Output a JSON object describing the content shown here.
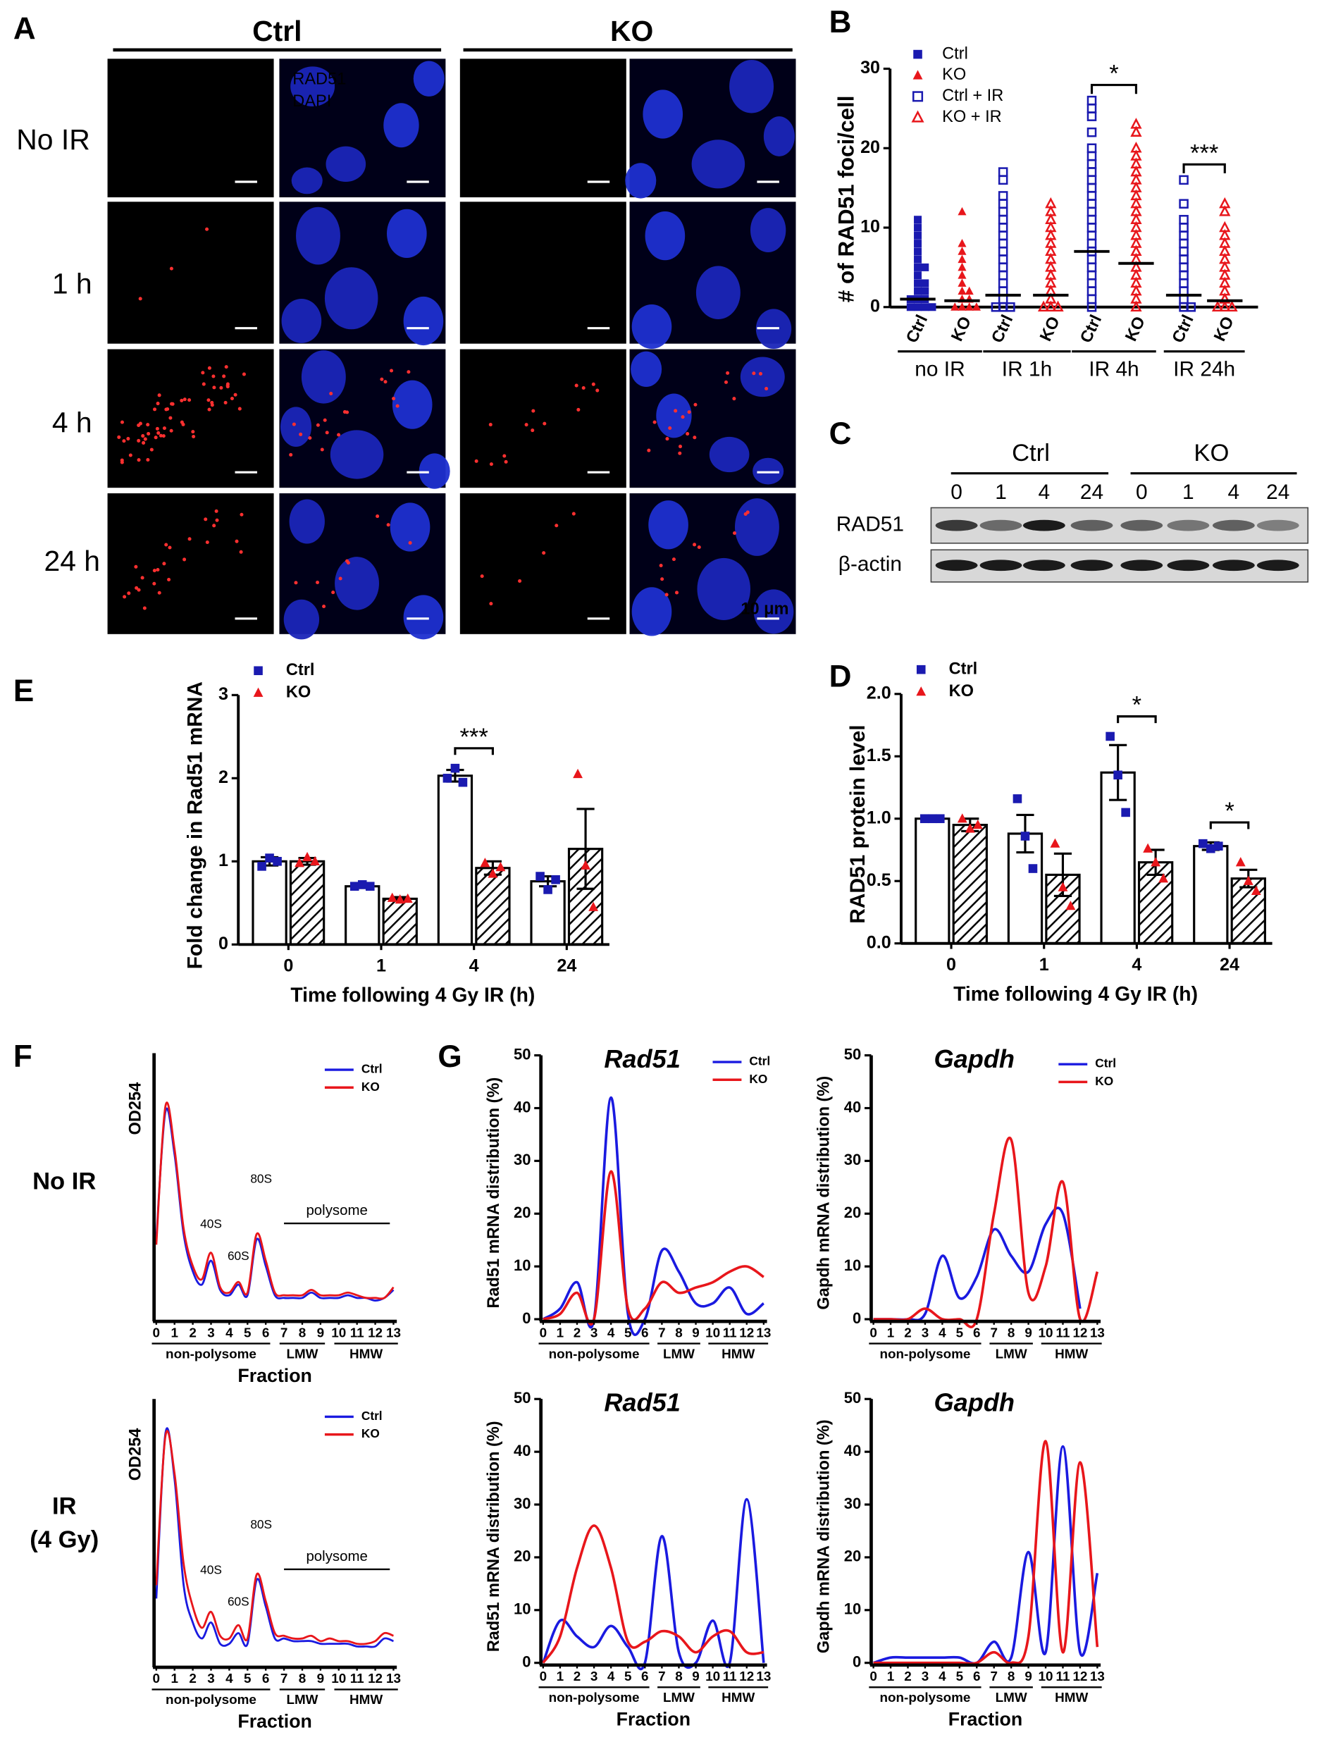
{
  "panel_labels": [
    "A",
    "B",
    "C",
    "D",
    "E",
    "F",
    "G"
  ],
  "panel_a": {
    "groups": [
      "Ctrl",
      "KO"
    ],
    "rows": [
      "No IR",
      "1 h",
      "4 h",
      "24 h"
    ],
    "channel_labels": [
      "RAD51",
      "RAD51",
      "DAPI"
    ],
    "scale_bar": "10 μm"
  },
  "panel_c": {
    "groups": [
      "Ctrl",
      "KO"
    ],
    "lanes": [
      "0",
      "1",
      "4",
      "24",
      "0",
      "1",
      "4",
      "24"
    ],
    "rows": [
      "RAD51",
      "β-actin"
    ]
  },
  "chart_data": [
    {
      "type": "dot_plot",
      "ylabel": "# of RAD51 foci/cell",
      "categories": [
        "Ctrl",
        "KO",
        "Ctrl",
        "KO",
        "Ctrl",
        "KO",
        "Ctrl",
        "KO"
      ],
      "groups": [
        "no IR",
        "IR 1h",
        "IR 4h",
        "IR 24h"
      ],
      "significance": [
        null,
        null,
        "*",
        "***"
      ],
      "ylim": [
        0,
        30
      ],
      "yticks": [
        0,
        10,
        20,
        30
      ],
      "series": [
        {
          "name": "Ctrl",
          "color": "#1a1ab0",
          "marker": "square",
          "filled": true,
          "means": [
            1,
            null,
            null,
            null,
            null,
            null,
            null,
            null
          ],
          "points": [
            [
              0,
              0,
              0,
              0,
              1,
              1,
              1,
              2,
              2,
              3,
              3,
              4,
              5,
              5,
              6,
              7,
              8,
              9,
              10,
              11
            ],
            null,
            null,
            null,
            null,
            null,
            null,
            null
          ]
        },
        {
          "name": "KO",
          "color": "#e8161b",
          "marker": "triangle",
          "filled": true,
          "means": [
            null,
            0.8,
            null,
            null,
            null,
            null,
            null,
            null
          ],
          "points": [
            null,
            [
              0,
              0,
              0,
              0,
              1,
              1,
              2,
              2,
              3,
              4,
              5,
              6,
              7,
              8,
              12
            ],
            null,
            null,
            null,
            null,
            null,
            null
          ]
        },
        {
          "name": "Ctrl + IR",
          "color": "#1a1ab0",
          "marker": "square",
          "filled": false,
          "means": [
            null,
            null,
            1.5,
            null,
            7,
            null,
            1.5,
            null
          ],
          "points": [
            null,
            null,
            [
              0,
              0,
              0,
              1,
              2,
              3,
              4,
              5,
              6,
              7,
              8,
              9,
              10,
              11,
              12,
              13,
              14,
              16,
              17
            ],
            null,
            [
              0,
              1,
              2,
              3,
              4,
              5,
              6,
              7,
              8,
              9,
              10,
              11,
              12,
              13,
              14,
              15,
              16,
              17,
              18,
              19,
              20,
              22,
              24,
              25,
              26
            ],
            null,
            [
              0,
              0,
              1,
              2,
              3,
              4,
              5,
              6,
              7,
              8,
              9,
              10,
              11,
              13,
              16
            ],
            null
          ]
        },
        {
          "name": "KO + IR",
          "color": "#e8161b",
          "marker": "triangle",
          "filled": false,
          "means": [
            null,
            null,
            null,
            1.5,
            null,
            5.5,
            null,
            0.8
          ],
          "points": [
            null,
            null,
            null,
            [
              0,
              0,
              0,
              1,
              2,
              3,
              4,
              5,
              6,
              7,
              8,
              9,
              10,
              11,
              12,
              13
            ],
            null,
            [
              0,
              1,
              2,
              3,
              4,
              5,
              6,
              7,
              8,
              9,
              10,
              11,
              12,
              13,
              14,
              15,
              16,
              17,
              18,
              19,
              20,
              22,
              23
            ],
            null,
            [
              0,
              0,
              0,
              1,
              2,
              3,
              4,
              5,
              6,
              7,
              8,
              9,
              10,
              12,
              13
            ]
          ]
        }
      ]
    },
    {
      "type": "bar",
      "ylabel": "Fold change in Rad51 mRNA",
      "xlabel": "Time following 4 Gy IR (h)",
      "categories": [
        "0",
        "1",
        "4",
        "24"
      ],
      "significance": [
        null,
        null,
        "***",
        null
      ],
      "ylim": [
        0,
        3
      ],
      "yticks": [
        0,
        1,
        2,
        3
      ],
      "series": [
        {
          "name": "Ctrl",
          "color": "#1a1ab0",
          "marker": "square",
          "hatch": false,
          "values": [
            1.0,
            0.7,
            2.03,
            0.76
          ],
          "errors": [
            0.05,
            0.02,
            0.07,
            0.06
          ],
          "points": [
            [
              0.94,
              1.04,
              1.0
            ],
            [
              0.7,
              0.72,
              0.7
            ],
            [
              2.0,
              2.12,
              1.95
            ],
            [
              0.82,
              0.66,
              0.78
            ]
          ]
        },
        {
          "name": "KO",
          "color": "#e8161b",
          "marker": "triangle",
          "hatch": true,
          "values": [
            1.0,
            0.55,
            0.92,
            1.15
          ],
          "errors": [
            0.04,
            0.02,
            0.08,
            0.48
          ],
          "points": [
            [
              0.98,
              1.05,
              1.0
            ],
            [
              0.56,
              0.54,
              0.55
            ],
            [
              0.98,
              0.85,
              0.93
            ],
            [
              2.05,
              0.95,
              0.45
            ]
          ]
        }
      ]
    },
    {
      "type": "bar",
      "ylabel": "RAD51 protein level",
      "xlabel": "Time following 4 Gy IR (h)",
      "categories": [
        "0",
        "1",
        "4",
        "24"
      ],
      "significance": [
        null,
        null,
        "*",
        "*"
      ],
      "ylim": [
        0,
        2
      ],
      "yticks": [
        {
          "value": 0,
          "label": "0.0"
        },
        0.5,
        {
          "value": 1,
          "label": "1.0"
        },
        1.5,
        {
          "value": 2,
          "label": "2.0"
        }
      ],
      "series": [
        {
          "name": "Ctrl",
          "color": "#1a1ab0",
          "marker": "square",
          "hatch": false,
          "values": [
            1.0,
            0.88,
            1.37,
            0.78
          ],
          "errors": [
            0.01,
            0.15,
            0.22,
            0.03
          ],
          "points": [
            [
              1.0,
              1.0,
              1.0
            ],
            [
              1.16,
              0.86,
              0.6
            ],
            [
              1.66,
              1.35,
              1.05
            ],
            [
              0.8,
              0.76,
              0.78
            ]
          ]
        },
        {
          "name": "KO",
          "color": "#e8161b",
          "marker": "triangle",
          "hatch": true,
          "values": [
            0.95,
            0.55,
            0.65,
            0.52
          ],
          "errors": [
            0.05,
            0.17,
            0.1,
            0.07
          ],
          "points": [
            [
              1.0,
              0.92,
              0.95
            ],
            [
              0.8,
              0.45,
              0.3
            ],
            [
              0.76,
              0.65,
              0.52
            ],
            [
              0.65,
              0.5,
              0.42
            ]
          ]
        }
      ]
    },
    {
      "type": "line",
      "row_label": [
        "No IR"
      ],
      "ylabel": "OD254",
      "xlabel": "Fraction",
      "peak_labels": [
        "40S",
        "60S",
        "80S",
        "polysome"
      ],
      "fraction_groups": [
        "non-polysome",
        "LMW",
        "HMW"
      ],
      "xlim": [
        0,
        13
      ],
      "xticks": [
        0,
        1,
        2,
        3,
        4,
        5,
        6,
        7,
        8,
        9,
        10,
        11,
        12,
        13
      ],
      "ylim": [
        0,
        100
      ],
      "x": [
        0,
        0.5,
        1,
        1.5,
        2,
        2.5,
        3,
        3.5,
        4,
        4.5,
        5,
        5.5,
        6,
        6.5,
        7,
        7.5,
        8,
        8.5,
        9,
        9.5,
        10,
        10.5,
        11,
        11.5,
        12,
        12.5,
        13
      ],
      "series": [
        {
          "name": "Ctrl",
          "color": "#1a1ae0",
          "values": [
            30,
            78,
            62,
            32,
            18,
            13,
            22,
            11,
            9,
            13,
            9,
            30,
            20,
            9,
            8,
            8,
            8,
            10,
            8,
            8,
            8,
            9,
            8,
            8,
            7,
            8,
            11
          ]
        },
        {
          "name": "KO",
          "color": "#e8161b",
          "values": [
            28,
            80,
            64,
            34,
            20,
            15,
            25,
            12,
            10,
            14,
            10,
            32,
            22,
            10,
            9,
            9,
            9,
            11,
            9,
            9,
            9,
            10,
            9,
            8,
            8,
            8,
            12
          ]
        }
      ]
    },
    {
      "type": "line",
      "row_label": [
        "IR",
        "(4 Gy)"
      ],
      "ylabel": "OD254",
      "xlabel": "Fraction",
      "peak_labels": [
        "40S",
        "60S",
        "80S",
        "polysome"
      ],
      "fraction_groups": [
        "non-polysome",
        "LMW",
        "HMW"
      ],
      "xlim": [
        0,
        13
      ],
      "xticks": [
        0,
        1,
        2,
        3,
        4,
        5,
        6,
        7,
        8,
        9,
        10,
        11,
        12,
        13
      ],
      "ylim": [
        0,
        100
      ],
      "x": [
        0,
        0.5,
        1,
        1.5,
        2,
        2.5,
        3,
        3.5,
        4,
        4.5,
        5,
        5.5,
        6,
        6.5,
        7,
        7.5,
        8,
        8.5,
        9,
        9.5,
        10,
        10.5,
        11,
        11.5,
        12,
        12.5,
        13
      ],
      "series": [
        {
          "name": "Ctrl",
          "color": "#1a1ae0",
          "values": [
            25,
            87,
            70,
            30,
            16,
            10,
            16,
            8,
            8,
            12,
            8,
            32,
            22,
            10,
            10,
            9,
            9,
            9,
            8,
            8,
            8,
            8,
            7,
            7,
            7,
            10,
            9
          ]
        },
        {
          "name": "KO",
          "color": "#e8161b",
          "values": [
            30,
            86,
            72,
            38,
            22,
            14,
            20,
            11,
            10,
            15,
            10,
            34,
            24,
            12,
            11,
            10,
            10,
            11,
            9,
            10,
            9,
            9,
            8,
            8,
            9,
            12,
            11
          ]
        }
      ]
    },
    {
      "type": "line",
      "title": "Rad51",
      "ylabel": "Rad51 mRNA distribution (%)",
      "fraction_groups": [
        "non-polysome",
        "LMW",
        "HMW"
      ],
      "xlim": [
        0,
        13
      ],
      "xticks": [
        0,
        1,
        2,
        3,
        4,
        5,
        6,
        7,
        8,
        9,
        10,
        11,
        12,
        13
      ],
      "ylim": [
        0,
        50
      ],
      "yticks": [
        0,
        10,
        20,
        30,
        40,
        50
      ],
      "x": [
        0,
        1,
        2,
        3,
        4,
        5,
        6,
        7,
        8,
        9,
        10,
        11,
        12,
        13
      ],
      "series": [
        {
          "name": "Ctrl",
          "color": "#1a1ae0",
          "values": [
            0,
            2,
            7,
            0,
            42,
            1,
            0,
            13,
            9,
            3,
            3,
            6,
            1,
            3
          ]
        },
        {
          "name": "KO",
          "color": "#e8161b",
          "values": [
            0,
            1,
            5,
            0,
            28,
            2,
            2,
            7,
            5,
            6,
            7,
            9,
            10,
            8
          ]
        }
      ]
    },
    {
      "type": "line",
      "title": "Gapdh",
      "ylabel": "Gapdh mRNA distribution (%)",
      "fraction_groups": [
        "non-polysome",
        "LMW",
        "HMW"
      ],
      "xlim": [
        0,
        13
      ],
      "xticks": [
        0,
        1,
        2,
        3,
        4,
        5,
        6,
        7,
        8,
        9,
        10,
        11,
        12,
        13
      ],
      "ylim": [
        0,
        50
      ],
      "yticks": [
        0,
        10,
        20,
        30,
        40,
        50
      ],
      "x": [
        0,
        1,
        2,
        3,
        4,
        5,
        6,
        7,
        8,
        9,
        10,
        11,
        12,
        13
      ],
      "series": [
        {
          "name": "Ctrl",
          "color": "#1a1ae0",
          "values": [
            0,
            0,
            0,
            1,
            12,
            4,
            8,
            17,
            12,
            9,
            18,
            20,
            2,
            null
          ]
        },
        {
          "name": "KO",
          "color": "#e8161b",
          "values": [
            0,
            0,
            0,
            2,
            0,
            0,
            0,
            20,
            34,
            5,
            10,
            26,
            0,
            9
          ]
        }
      ]
    },
    {
      "type": "line",
      "title": "Rad51",
      "ylabel": "Rad51 mRNA distribution (%)",
      "xlabel": "Fraction",
      "fraction_groups": [
        "non-polysome",
        "LMW",
        "HMW"
      ],
      "xlim": [
        0,
        13
      ],
      "xticks": [
        0,
        1,
        2,
        3,
        4,
        5,
        6,
        7,
        8,
        9,
        10,
        11,
        12,
        13
      ],
      "ylim": [
        0,
        50
      ],
      "yticks": [
        0,
        10,
        20,
        30,
        40,
        50
      ],
      "x": [
        0,
        1,
        2,
        3,
        4,
        5,
        6,
        7,
        8,
        9,
        10,
        11,
        12,
        13
      ],
      "series": [
        {
          "name": "Ctrl",
          "color": "#1a1ae0",
          "values": [
            0,
            8,
            5,
            3,
            7,
            3,
            0,
            24,
            2,
            0,
            8,
            0,
            31,
            0
          ]
        },
        {
          "name": "KO",
          "color": "#e8161b",
          "values": [
            0,
            5,
            18,
            26,
            18,
            4,
            4,
            6,
            5,
            2,
            5,
            6,
            2,
            2
          ]
        }
      ]
    },
    {
      "type": "line",
      "title": "Gapdh",
      "ylabel": "Gapdh mRNA distribution (%)",
      "xlabel": "Fraction",
      "fraction_groups": [
        "non-polysome",
        "LMW",
        "HMW"
      ],
      "xlim": [
        0,
        13
      ],
      "xticks": [
        0,
        1,
        2,
        3,
        4,
        5,
        6,
        7,
        8,
        9,
        10,
        11,
        12,
        13
      ],
      "ylim": [
        0,
        50
      ],
      "yticks": [
        0,
        10,
        20,
        30,
        40,
        50
      ],
      "x": [
        0,
        1,
        2,
        3,
        4,
        5,
        6,
        7,
        8,
        9,
        10,
        11,
        12,
        13
      ],
      "series": [
        {
          "name": "Ctrl",
          "color": "#1a1ae0",
          "values": [
            0,
            1,
            1,
            1,
            1,
            1,
            0,
            4,
            1,
            21,
            2,
            41,
            2,
            17
          ]
        },
        {
          "name": "KO",
          "color": "#e8161b",
          "values": [
            0,
            0,
            0,
            0,
            0,
            0,
            0,
            2,
            0,
            5,
            42,
            2,
            38,
            3
          ]
        }
      ]
    }
  ]
}
